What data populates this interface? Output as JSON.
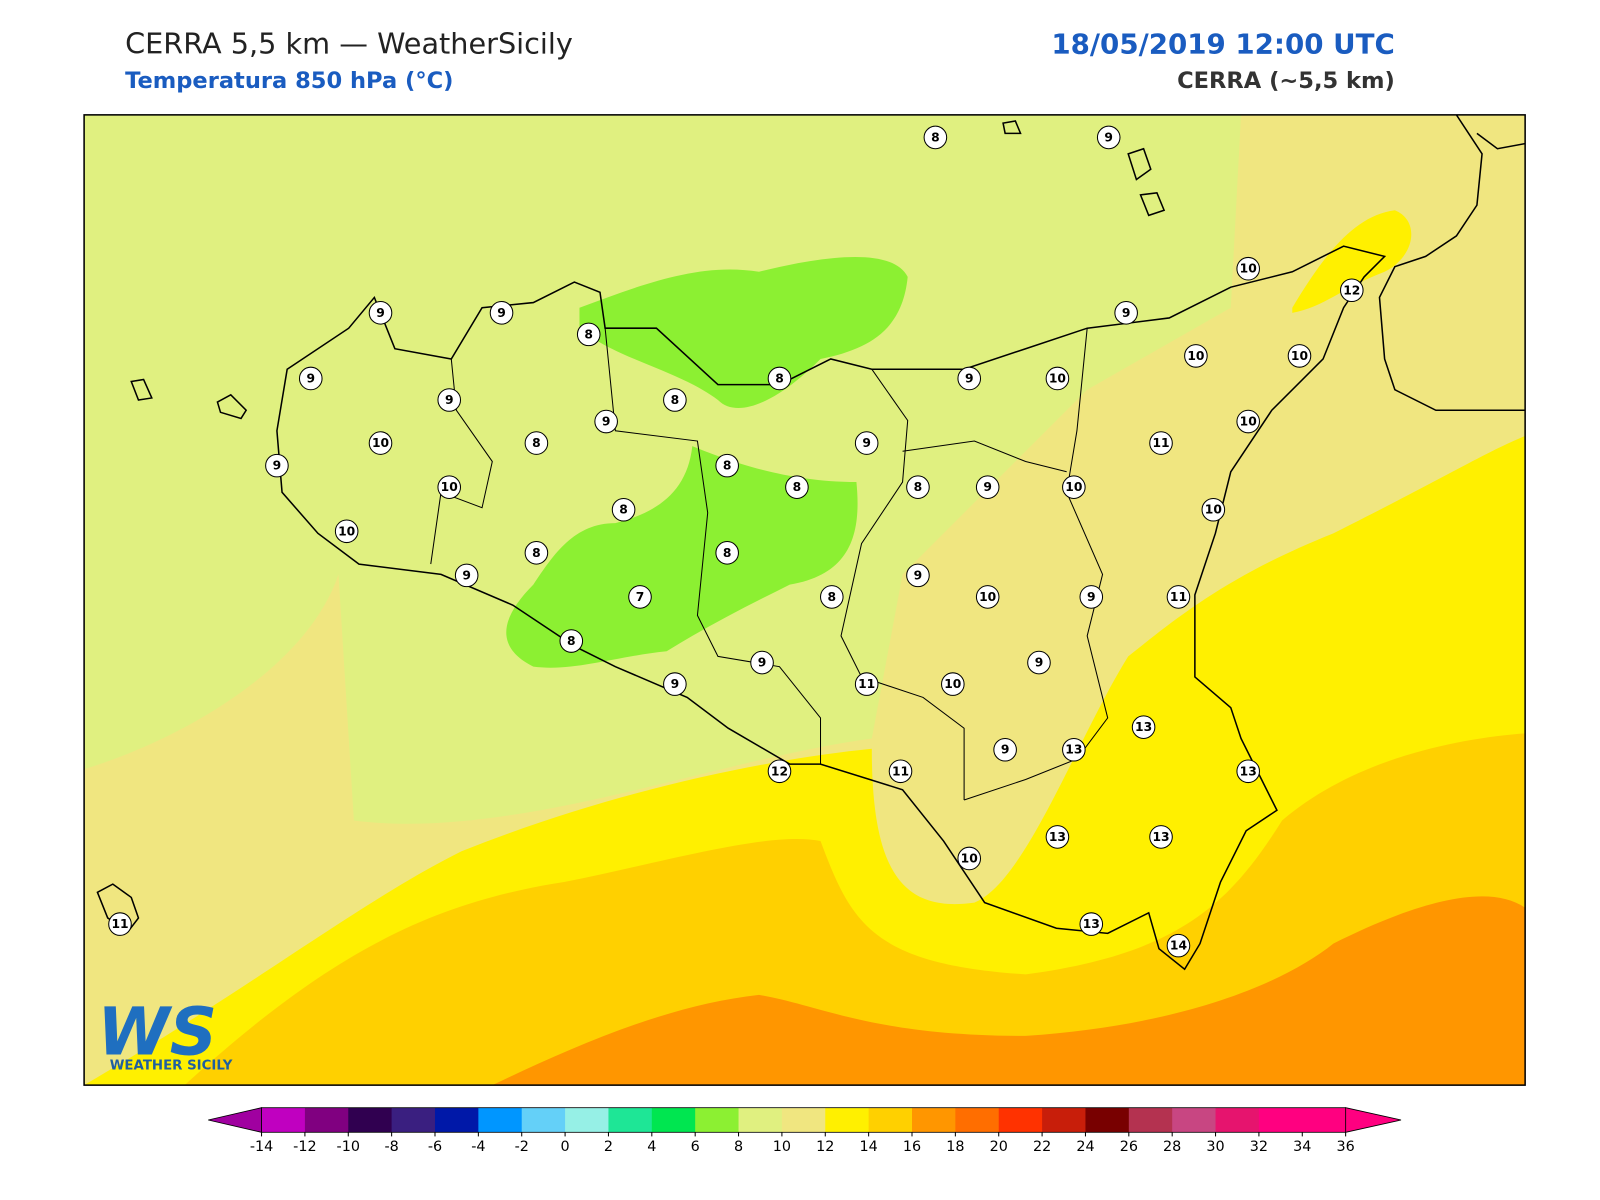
{
  "header": {
    "title": "CERRA 5,5 km — WeatherSicily",
    "subtitle": "Temperatura 850 hPa (°C)",
    "datetime": "18/05/2019 12:00 UTC",
    "model": "CERRA (~5,5 km)"
  },
  "stations": [
    8,
    9,
    9,
    9,
    8,
    9,
    9,
    8,
    8,
    9,
    10,
    8,
    9,
    9,
    10,
    9,
    10,
    12,
    10,
    10,
    10,
    11,
    9,
    10,
    8,
    8,
    8,
    9,
    10,
    10,
    10,
    8,
    8,
    8,
    9,
    7,
    8,
    9,
    10,
    9,
    11,
    8,
    9,
    9,
    9,
    11,
    10,
    13,
    9,
    13,
    13,
    12,
    11,
    13,
    13,
    10,
    13,
    14,
    11
  ],
  "colorbar": {
    "ticks": [
      -14,
      -12,
      -10,
      -8,
      -6,
      -4,
      -2,
      0,
      2,
      4,
      6,
      8,
      10,
      12,
      14,
      16,
      18,
      20,
      22,
      24,
      26,
      28,
      30,
      32,
      34,
      36
    ],
    "colors": [
      "#c000c0",
      "#800080",
      "#300050",
      "#3a1f80",
      "#0018a8",
      "#0096ff",
      "#64d0f8",
      "#96f0e6",
      "#1ee696",
      "#00e650",
      "#8cf032",
      "#e0f080",
      "#f0e680",
      "#fff000",
      "#ffd000",
      "#ff9600",
      "#ff6e00",
      "#ff3200",
      "#c81e0a",
      "#780000",
      "#b43250",
      "#c84682",
      "#e6146e",
      "#ff0080",
      "#ff0080"
    ],
    "under_color": "#a000a0",
    "over_color": "#ff0080"
  },
  "logo": {
    "mark": "WS",
    "text": "WEATHER SICILY"
  }
}
